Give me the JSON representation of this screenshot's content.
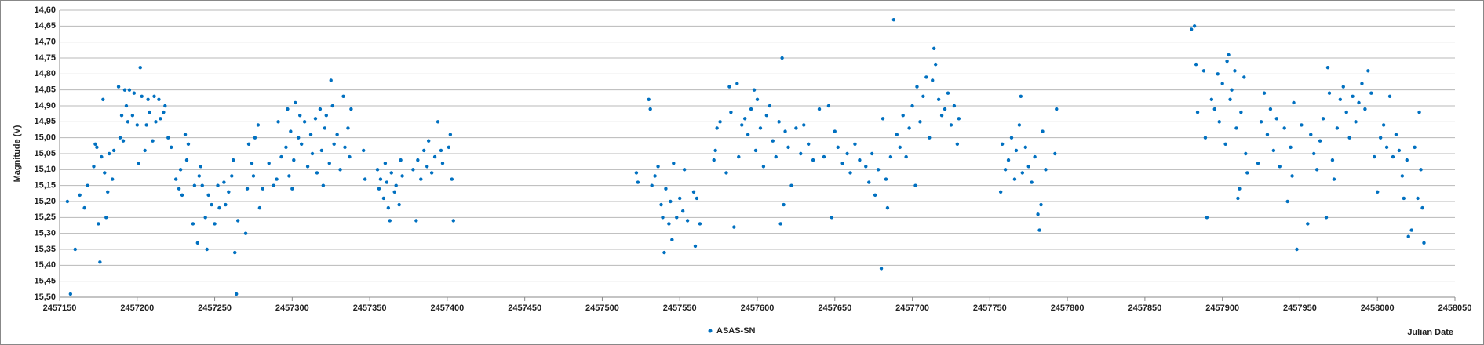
{
  "chart_data": {
    "type": "scatter",
    "y_label": "Magnitude (V)",
    "x_label": "Julian Date",
    "xlim": [
      2457150,
      2458050
    ],
    "xticks": [
      2457150,
      2457200,
      2457250,
      2457300,
      2457350,
      2457400,
      2457450,
      2457500,
      2457550,
      2457600,
      2457650,
      2457700,
      2457750,
      2457800,
      2457850,
      2457900,
      2457950,
      2458000,
      2458050
    ],
    "ylim": [
      15.5,
      14.6
    ],
    "yticks": [
      {
        "value": 14.6,
        "label": "14,60"
      },
      {
        "value": 14.65,
        "label": "14,65"
      },
      {
        "value": 14.7,
        "label": "14,70"
      },
      {
        "value": 14.75,
        "label": "14,75"
      },
      {
        "value": 14.8,
        "label": "14,80"
      },
      {
        "value": 14.85,
        "label": "14,85"
      },
      {
        "value": 14.9,
        "label": "14,90"
      },
      {
        "value": 14.95,
        "label": "14,95"
      },
      {
        "value": 15.0,
        "label": "15,00"
      },
      {
        "value": 15.05,
        "label": "15,05"
      },
      {
        "value": 15.1,
        "label": "15,10"
      },
      {
        "value": 15.15,
        "label": "15,15"
      },
      {
        "value": 15.2,
        "label": "15,20"
      },
      {
        "value": 15.25,
        "label": "15,25"
      },
      {
        "value": 15.3,
        "label": "15,30"
      },
      {
        "value": 15.35,
        "label": "15,35"
      },
      {
        "value": 15.4,
        "label": "15,40"
      },
      {
        "value": 15.45,
        "label": "15,45"
      },
      {
        "value": 15.5,
        "label": "15,50"
      }
    ],
    "grid": true,
    "legend": "bottom",
    "series": [
      {
        "name": "ASAS-SN",
        "color": "#0070c0",
        "x": [
          2457155,
          2457157,
          2457160,
          2457163,
          2457166,
          2457168,
          2457172,
          2457173,
          2457174,
          2457175,
          2457176,
          2457177,
          2457178,
          2457179,
          2457180,
          2457181,
          2457182,
          2457184,
          2457185,
          2457188,
          2457189,
          2457190,
          2457191,
          2457192,
          2457193,
          2457194,
          2457195,
          2457197,
          2457198,
          2457200,
          2457201,
          2457202,
          2457203,
          2457205,
          2457206,
          2457207,
          2457208,
          2457210,
          2457211,
          2457212,
          2457214,
          2457215,
          2457217,
          2457218,
          2457220,
          2457222,
          2457225,
          2457227,
          2457228,
          2457229,
          2457231,
          2457232,
          2457233,
          2457236,
          2457237,
          2457239,
          2457240,
          2457241,
          2457242,
          2457244,
          2457245,
          2457246,
          2457248,
          2457250,
          2457252,
          2457253,
          2457256,
          2457257,
          2457259,
          2457261,
          2457262,
          2457263,
          2457264,
          2457265,
          2457270,
          2457271,
          2457272,
          2457274,
          2457275,
          2457276,
          2457278,
          2457279,
          2457281,
          2457285,
          2457288,
          2457290,
          2457291,
          2457293,
          2457296,
          2457297,
          2457298,
          2457299,
          2457300,
          2457301,
          2457302,
          2457304,
          2457305,
          2457306,
          2457308,
          2457310,
          2457312,
          2457313,
          2457315,
          2457316,
          2457318,
          2457319,
          2457320,
          2457321,
          2457322,
          2457324,
          2457325,
          2457326,
          2457327,
          2457329,
          2457331,
          2457333,
          2457334,
          2457336,
          2457337,
          2457338,
          2457346,
          2457347,
          2457355,
          2457356,
          2457357,
          2457359,
          2457360,
          2457361,
          2457362,
          2457363,
          2457364,
          2457366,
          2457367,
          2457369,
          2457370,
          2457371,
          2457378,
          2457380,
          2457381,
          2457383,
          2457385,
          2457387,
          2457388,
          2457390,
          2457392,
          2457394,
          2457396,
          2457397,
          2457401,
          2457402,
          2457403,
          2457404,
          2457522,
          2457523,
          2457530,
          2457531,
          2457532,
          2457534,
          2457536,
          2457538,
          2457539,
          2457540,
          2457541,
          2457543,
          2457544,
          2457545,
          2457546,
          2457548,
          2457550,
          2457552,
          2457553,
          2457555,
          2457559,
          2457560,
          2457561,
          2457563,
          2457572,
          2457573,
          2457574,
          2457576,
          2457580,
          2457582,
          2457583,
          2457585,
          2457587,
          2457588,
          2457590,
          2457592,
          2457594,
          2457596,
          2457598,
          2457599,
          2457600,
          2457602,
          2457604,
          2457606,
          2457608,
          2457610,
          2457612,
          2457614,
          2457615,
          2457616,
          2457617,
          2457618,
          2457620,
          2457622,
          2457625,
          2457628,
          2457630,
          2457633,
          2457636,
          2457640,
          2457643,
          2457646,
          2457648,
          2457650,
          2457652,
          2457655,
          2457658,
          2457660,
          2457663,
          2457666,
          2457670,
          2457672,
          2457674,
          2457676,
          2457678,
          2457680,
          2457681,
          2457683,
          2457684,
          2457686,
          2457688,
          2457690,
          2457692,
          2457694,
          2457696,
          2457698,
          2457700,
          2457702,
          2457703,
          2457705,
          2457707,
          2457709,
          2457711,
          2457713,
          2457714,
          2457715,
          2457717,
          2457719,
          2457721,
          2457723,
          2457725,
          2457727,
          2457729,
          2457730,
          2457757,
          2457758,
          2457760,
          2457762,
          2457764,
          2457766,
          2457767,
          2457769,
          2457770,
          2457771,
          2457773,
          2457775,
          2457777,
          2457779,
          2457781,
          2457782,
          2457783,
          2457784,
          2457786,
          2457792,
          2457793,
          2457880,
          2457882,
          2457883,
          2457884,
          2457888,
          2457889,
          2457890,
          2457893,
          2457895,
          2457897,
          2457898,
          2457900,
          2457902,
          2457903,
          2457904,
          2457905,
          2457906,
          2457908,
          2457909,
          2457910,
          2457911,
          2457912,
          2457914,
          2457915,
          2457916,
          2457923,
          2457925,
          2457927,
          2457929,
          2457931,
          2457933,
          2457935,
          2457937,
          2457940,
          2457942,
          2457944,
          2457945,
          2457946,
          2457948,
          2457951,
          2457955,
          2457957,
          2457959,
          2457961,
          2457963,
          2457965,
          2457967,
          2457968,
          2457969,
          2457971,
          2457972,
          2457974,
          2457976,
          2457978,
          2457980,
          2457982,
          2457984,
          2457986,
          2457988,
          2457990,
          2457992,
          2457994,
          2457996,
          2457998,
          2458000,
          2458002,
          2458004,
          2458006,
          2458008,
          2458010,
          2458012,
          2458014,
          2458016,
          2458017,
          2458019,
          2458020,
          2458022,
          2458024,
          2458026,
          2458027,
          2458028,
          2458029,
          2458030
        ],
        "values": [
          15.2,
          15.49,
          15.35,
          15.18,
          15.22,
          15.15,
          15.09,
          15.02,
          15.03,
          15.27,
          15.39,
          15.06,
          14.88,
          15.11,
          15.25,
          15.17,
          15.05,
          15.13,
          15.04,
          14.84,
          15.0,
          14.93,
          15.01,
          14.85,
          14.9,
          14.95,
          14.85,
          14.93,
          14.86,
          14.96,
          15.08,
          14.78,
          14.87,
          15.04,
          14.96,
          14.88,
          14.92,
          15.01,
          14.87,
          14.95,
          14.88,
          14.94,
          14.92,
          14.9,
          15.0,
          15.03,
          15.13,
          15.16,
          15.1,
          15.18,
          14.99,
          15.07,
          15.02,
          15.27,
          15.15,
          15.33,
          15.12,
          15.09,
          15.15,
          15.25,
          15.35,
          15.18,
          15.21,
          15.27,
          15.15,
          15.22,
          15.14,
          15.21,
          15.17,
          15.12,
          15.07,
          15.36,
          15.49,
          15.26,
          15.3,
          15.16,
          15.02,
          15.08,
          15.12,
          15.0,
          14.96,
          15.22,
          15.16,
          15.08,
          15.15,
          15.13,
          14.95,
          15.06,
          15.03,
          14.91,
          15.12,
          14.98,
          15.16,
          15.07,
          14.89,
          15.0,
          14.93,
          15.02,
          14.95,
          15.09,
          14.99,
          15.05,
          14.94,
          15.11,
          14.91,
          15.04,
          15.15,
          14.97,
          14.93,
          15.08,
          14.82,
          14.9,
          15.02,
          14.99,
          15.1,
          14.87,
          15.03,
          14.97,
          15.06,
          14.91,
          15.04,
          15.13,
          15.1,
          15.16,
          15.13,
          15.19,
          15.08,
          15.14,
          15.22,
          15.26,
          15.11,
          15.17,
          15.15,
          15.21,
          15.07,
          15.12,
          15.1,
          15.26,
          15.07,
          15.13,
          15.04,
          15.09,
          15.01,
          15.11,
          15.06,
          14.95,
          15.04,
          15.08,
          15.03,
          14.99,
          15.13,
          15.26,
          15.11,
          15.14,
          14.88,
          14.91,
          15.15,
          15.12,
          15.09,
          15.21,
          15.25,
          15.36,
          15.16,
          15.27,
          15.2,
          15.32,
          15.08,
          15.25,
          15.19,
          15.23,
          15.1,
          15.26,
          15.17,
          15.34,
          15.19,
          15.27,
          15.07,
          15.04,
          14.97,
          14.95,
          15.11,
          14.84,
          14.92,
          15.28,
          14.83,
          15.06,
          14.96,
          14.94,
          14.99,
          14.91,
          14.85,
          15.04,
          14.88,
          14.97,
          15.09,
          14.93,
          14.9,
          15.01,
          15.06,
          14.95,
          15.27,
          14.75,
          15.21,
          14.98,
          15.03,
          15.15,
          14.97,
          15.05,
          14.96,
          15.02,
          15.07,
          14.91,
          15.06,
          14.9,
          15.25,
          14.98,
          15.03,
          15.08,
          15.05,
          15.11,
          15.02,
          15.07,
          15.09,
          15.14,
          15.05,
          15.18,
          15.1,
          15.41,
          14.94,
          15.13,
          15.22,
          15.06,
          14.63,
          14.99,
          15.03,
          14.93,
          15.06,
          14.97,
          14.9,
          15.15,
          14.84,
          14.95,
          14.87,
          14.81,
          15.0,
          14.82,
          14.72,
          14.77,
          14.88,
          14.93,
          14.91,
          14.86,
          14.96,
          14.9,
          15.02,
          14.94,
          15.17,
          15.02,
          15.1,
          15.07,
          15.0,
          15.13,
          15.04,
          14.96,
          14.87,
          15.11,
          15.03,
          15.09,
          15.14,
          15.06,
          15.24,
          15.29,
          15.21,
          14.98,
          15.1,
          15.05,
          14.91,
          14.66,
          14.65,
          14.77,
          14.92,
          14.79,
          15.0,
          15.25,
          14.88,
          14.91,
          14.8,
          14.95,
          14.83,
          15.02,
          14.76,
          14.74,
          14.88,
          14.85,
          14.79,
          14.97,
          15.19,
          15.16,
          14.92,
          14.81,
          15.05,
          15.11,
          15.08,
          14.95,
          14.86,
          14.99,
          14.91,
          15.04,
          14.94,
          15.09,
          14.97,
          15.2,
          15.03,
          15.12,
          14.89,
          15.35,
          14.96,
          15.27,
          14.99,
          15.05,
          15.1,
          15.01,
          14.94,
          15.25,
          14.78,
          14.86,
          15.07,
          15.13,
          14.97,
          14.88,
          14.84,
          14.92,
          15.0,
          14.87,
          14.95,
          14.89,
          14.83,
          14.91,
          14.79,
          14.86,
          15.06,
          15.17,
          15.0,
          14.96,
          15.03,
          14.87,
          15.06,
          14.99,
          15.04,
          15.12,
          15.19,
          15.07,
          15.31,
          15.29,
          15.03,
          15.19,
          14.92,
          15.1,
          15.22,
          15.33
        ]
      }
    ]
  }
}
